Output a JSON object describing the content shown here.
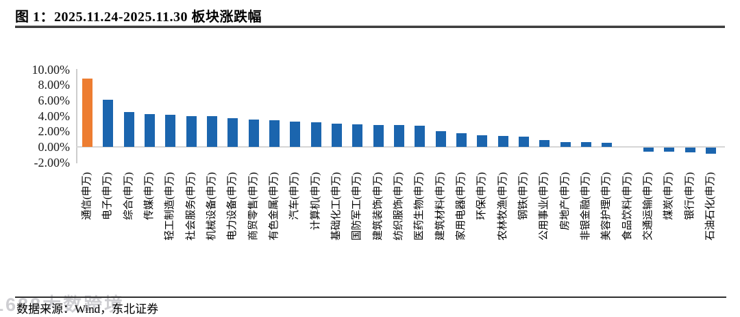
{
  "figure": {
    "title": "图 1：2025.11.24-2025.11.30 板块涨跌幅",
    "source_note": "数据来源：Wind，东北证券",
    "watermark": "1688大数跨境"
  },
  "colors": {
    "highlight_bar": "#ED7D31",
    "default_bar": "#1B65AE",
    "axis_line": "#CCCCCC",
    "title_rule": "#3C3C3C"
  },
  "chart_data": {
    "type": "bar",
    "title": "2025.11.24-2025.11.30 板块涨跌幅",
    "xlabel": "",
    "ylabel": "",
    "ylim": [
      -2,
      10
    ],
    "grid": false,
    "legend": "none",
    "y_tick_labels": [
      "10.00%",
      "8.00%",
      "6.00%",
      "4.00%",
      "2.00%",
      "0.00%",
      "-2.00%"
    ],
    "y_tick_values": [
      10,
      8,
      6,
      4,
      2,
      0,
      -2
    ],
    "categories": [
      "通信(申万)",
      "电子(申万)",
      "综合(申万)",
      "传媒(申万)",
      "轻工制造(申万)",
      "社会服务(申万)",
      "机械设备(申万)",
      "电力设备(申万)",
      "商贸零售(申万)",
      "有色金属(申万)",
      "汽车(申万)",
      "计算机(申万)",
      "基础化工(申万)",
      "国防军工(申万)",
      "建筑装饰(申万)",
      "纺织服饰(申万)",
      "医药生物(申万)",
      "建筑材料(申万)",
      "家用电器(申万)",
      "环保(申万)",
      "农林牧渔(申万)",
      "钢铁(申万)",
      "公用事业(申万)",
      "房地产(申万)",
      "非银金融(申万)",
      "美容护理(申万)",
      "食品饮料(申万)",
      "交通运输(申万)",
      "煤炭(申万)",
      "银行(申万)",
      "石油石化(申万)"
    ],
    "values": [
      8.8,
      6.1,
      4.45,
      4.25,
      4.15,
      4.0,
      3.95,
      3.7,
      3.5,
      3.4,
      3.25,
      3.15,
      3.0,
      2.9,
      2.85,
      2.8,
      2.7,
      2.05,
      1.75,
      1.5,
      1.45,
      1.3,
      0.85,
      0.65,
      0.6,
      0.5,
      0.0,
      -0.5,
      -0.55,
      -0.65,
      -0.8
    ],
    "highlighted_category": "通信(申万)"
  }
}
